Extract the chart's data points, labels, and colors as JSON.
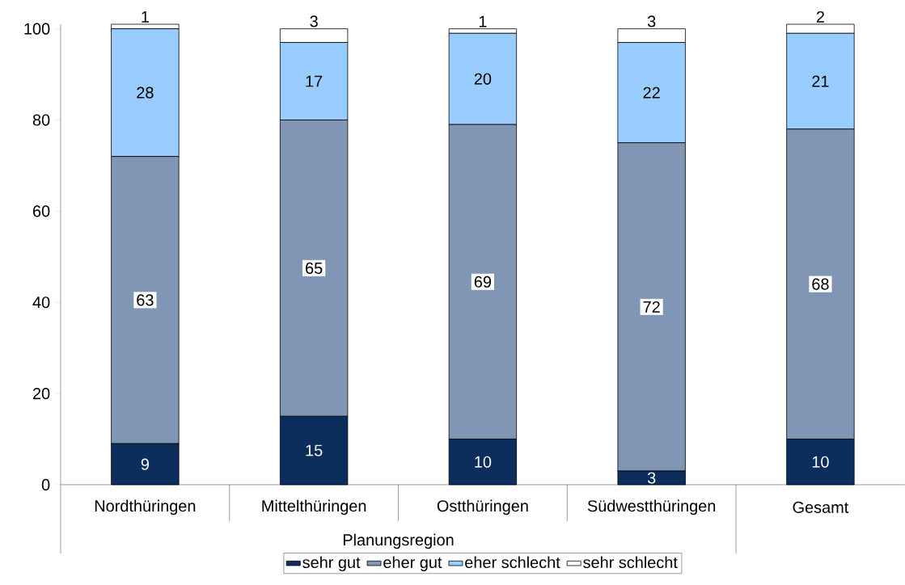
{
  "chart_data": {
    "type": "bar",
    "stacked": true,
    "categories": [
      "Nordthüringen",
      "Mittelthüringen",
      "Ostthüringen",
      "Südwestthüringen",
      "Gesamt"
    ],
    "series": [
      {
        "name": "sehr gut",
        "color": "#0b2e5c",
        "values": [
          9,
          15,
          10,
          3,
          10
        ]
      },
      {
        "name": "eher gut",
        "color": "#8196b4",
        "values": [
          63,
          65,
          69,
          72,
          68
        ]
      },
      {
        "name": "eher schlecht",
        "color": "#99ccff",
        "values": [
          28,
          17,
          20,
          22,
          21
        ]
      },
      {
        "name": "sehr schlecht",
        "color": "#ffffff",
        "values": [
          1,
          3,
          1,
          3,
          2
        ]
      }
    ],
    "ylim": [
      0,
      101
    ],
    "yticks": [
      0,
      20,
      40,
      60,
      80,
      100
    ],
    "data_labels": true,
    "legend": "bottom",
    "annotations": [
      "Planungsregion"
    ]
  }
}
